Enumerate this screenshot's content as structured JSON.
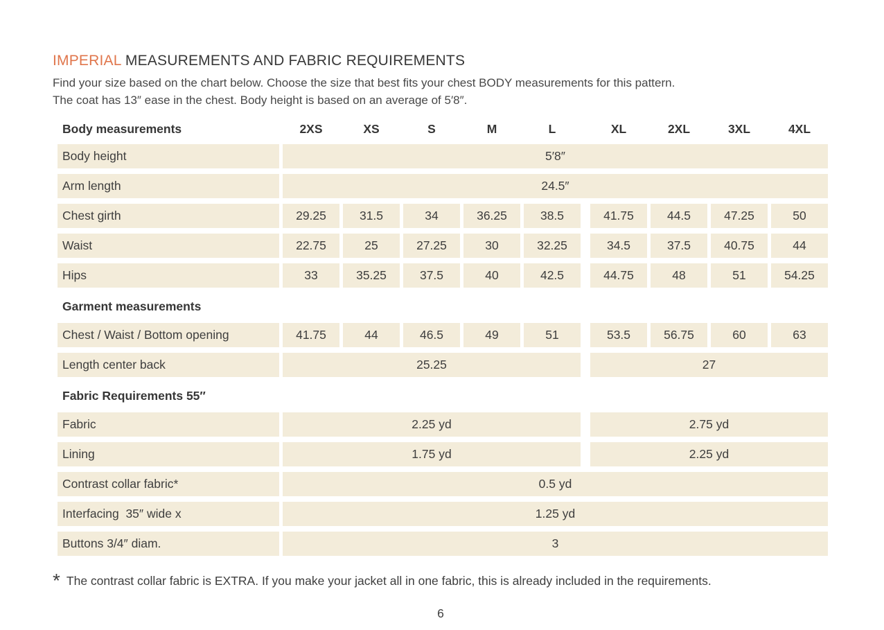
{
  "colors": {
    "accent": "#E0764C",
    "row_background": "#F3ECDA",
    "text": "#3E3E3E"
  },
  "title": {
    "highlight": "IMPERIAL",
    "rest": " MEASUREMENTS AND FABRIC REQUIREMENTS"
  },
  "intro": {
    "line1": "Find your size based on the chart below. Choose the size that best fits your chest BODY measurements for this pattern.",
    "line2": "The coat has 13″ ease in the chest. Body height is based on an average of 5′8″."
  },
  "table": {
    "header_label": "Body measurements",
    "size_columns": [
      "2XS",
      "XS",
      "S",
      "M",
      "L",
      "XL",
      "2XL",
      "3XL",
      "4XL"
    ],
    "rows": [
      {
        "kind": "full",
        "label": "Body height",
        "value": "5′8″"
      },
      {
        "kind": "full",
        "label": "Arm length",
        "value": "24.5″"
      },
      {
        "kind": "cells",
        "label": "Chest girth",
        "values": [
          "29.25",
          "31.5",
          "34",
          "36.25",
          "38.5",
          "41.75",
          "44.5",
          "47.25",
          "50"
        ]
      },
      {
        "kind": "cells",
        "label": "Waist",
        "values": [
          "22.75",
          "25",
          "27.25",
          "30",
          "32.25",
          "34.5",
          "37.5",
          "40.75",
          "44"
        ]
      },
      {
        "kind": "cells",
        "label": "Hips",
        "values": [
          "33",
          "35.25",
          "37.5",
          "40",
          "42.5",
          "44.75",
          "48",
          "51",
          "54.25"
        ]
      },
      {
        "kind": "section",
        "label": "Garment measurements"
      },
      {
        "kind": "cells",
        "label": "Chest / Waist / Bottom opening",
        "values": [
          "41.75",
          "44",
          "46.5",
          "49",
          "51",
          "53.5",
          "56.75",
          "60",
          "63"
        ]
      },
      {
        "kind": "split",
        "label": "Length center back",
        "left": "25.25",
        "right": "27"
      },
      {
        "kind": "section",
        "label": "Fabric Requirements 55″"
      },
      {
        "kind": "split",
        "label": "Fabric",
        "left": "2.25 yd",
        "right": "2.75 yd"
      },
      {
        "kind": "split",
        "label": "Lining",
        "left": "1.75 yd",
        "right": "2.25 yd"
      },
      {
        "kind": "full",
        "label": "Contrast collar fabric*",
        "value": "0.5 yd"
      },
      {
        "kind": "full",
        "label": "Interfacing  35″ wide x",
        "value": "1.25 yd"
      },
      {
        "kind": "full",
        "label": "Buttons 3/4″ diam.",
        "value": "3"
      }
    ]
  },
  "footnote": {
    "marker": "*",
    "text": "The contrast collar fabric is EXTRA. If you make your jacket all in one fabric, this is already included in the requirements."
  },
  "page_number": "6"
}
